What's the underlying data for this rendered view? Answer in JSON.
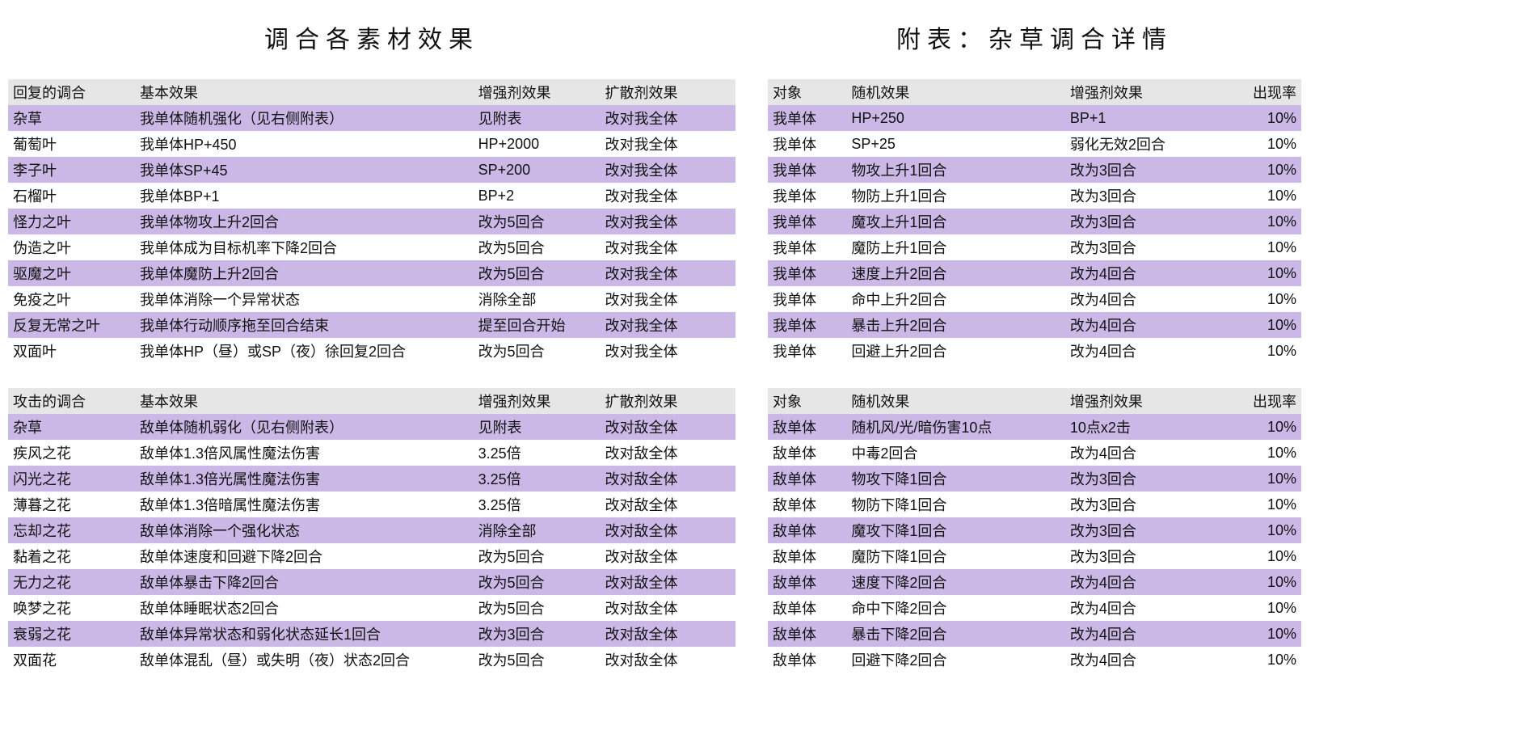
{
  "palette": {
    "header_bg": "#e6e6e6",
    "stripe_bg": "#ccb8e6",
    "page_bg": "#ffffff",
    "text_color": "#111111"
  },
  "titles": {
    "left": "调合各素材效果",
    "right": "附表：杂草调合详情"
  },
  "left_tables": [
    {
      "col_widths": [
        "150px",
        "400px",
        "150px",
        "160px"
      ],
      "headers": [
        "回复的调合",
        "基本效果",
        "增强剂效果",
        "扩散剂效果"
      ],
      "rows": [
        [
          "杂草",
          "我单体随机强化（见右侧附表）",
          "见附表",
          "改对我全体"
        ],
        [
          "葡萄叶",
          "我单体HP+450",
          "HP+2000",
          "改对我全体"
        ],
        [
          "李子叶",
          "我单体SP+45",
          "SP+200",
          "改对我全体"
        ],
        [
          "石榴叶",
          "我单体BP+1",
          "BP+2",
          "改对我全体"
        ],
        [
          "怪力之叶",
          "我单体物攻上升2回合",
          "改为5回合",
          "改对我全体"
        ],
        [
          "伪造之叶",
          "我单体成为目标机率下降2回合",
          "改为5回合",
          "改对我全体"
        ],
        [
          "驱魔之叶",
          "我单体魔防上升2回合",
          "改为5回合",
          "改对我全体"
        ],
        [
          "免疫之叶",
          "我单体消除一个异常状态",
          "消除全部",
          "改对我全体"
        ],
        [
          "反复无常之叶",
          "我单体行动顺序拖至回合结束",
          "提至回合开始",
          "改对我全体"
        ],
        [
          "双面叶",
          "我单体HP（昼）或SP（夜）徐回复2回合",
          "改为5回合",
          "改对我全体"
        ]
      ]
    },
    {
      "col_widths": [
        "150px",
        "400px",
        "150px",
        "160px"
      ],
      "headers": [
        "攻击的调合",
        "基本效果",
        "增强剂效果",
        "扩散剂效果"
      ],
      "rows": [
        [
          "杂草",
          "敌单体随机弱化（见右侧附表）",
          "见附表",
          "改对敌全体"
        ],
        [
          "疾风之花",
          "敌单体1.3倍风属性魔法伤害",
          "3.25倍",
          "改对敌全体"
        ],
        [
          "闪光之花",
          "敌单体1.3倍光属性魔法伤害",
          "3.25倍",
          "改对敌全体"
        ],
        [
          "薄暮之花",
          "敌单体1.3倍暗属性魔法伤害",
          "3.25倍",
          "改对敌全体"
        ],
        [
          "忘却之花",
          "敌单体消除一个强化状态",
          "消除全部",
          "改对敌全体"
        ],
        [
          "黏着之花",
          "敌单体速度和回避下降2回合",
          "改为5回合",
          "改对敌全体"
        ],
        [
          "无力之花",
          "敌单体暴击下降2回合",
          "改为5回合",
          "改对敌全体"
        ],
        [
          "唤梦之花",
          "敌单体睡眠状态2回合",
          "改为5回合",
          "改对敌全体"
        ],
        [
          "衰弱之花",
          "敌单体异常状态和弱化状态延长1回合",
          "改为3回合",
          "改对敌全体"
        ],
        [
          "双面花",
          "敌单体混乱（昼）或失明（夜）状态2回合",
          "改为5回合",
          "改对敌全体"
        ]
      ]
    }
  ],
  "right_tables": [
    {
      "col_widths": [
        "90px",
        "250px",
        "180px",
        "90px"
      ],
      "headers": [
        "对象",
        "随机效果",
        "增强剂效果",
        "出现率"
      ],
      "last_col_numeric": true,
      "rows": [
        [
          "我单体",
          "HP+250",
          "BP+1",
          "10%"
        ],
        [
          "我单体",
          "SP+25",
          "弱化无效2回合",
          "10%"
        ],
        [
          "我单体",
          "物攻上升1回合",
          "改为3回合",
          "10%"
        ],
        [
          "我单体",
          "物防上升1回合",
          "改为3回合",
          "10%"
        ],
        [
          "我单体",
          "魔攻上升1回合",
          "改为3回合",
          "10%"
        ],
        [
          "我单体",
          "魔防上升1回合",
          "改为3回合",
          "10%"
        ],
        [
          "我单体",
          "速度上升2回合",
          "改为4回合",
          "10%"
        ],
        [
          "我单体",
          "命中上升2回合",
          "改为4回合",
          "10%"
        ],
        [
          "我单体",
          "暴击上升2回合",
          "改为4回合",
          "10%"
        ],
        [
          "我单体",
          "回避上升2回合",
          "改为4回合",
          "10%"
        ]
      ]
    },
    {
      "col_widths": [
        "90px",
        "250px",
        "180px",
        "90px"
      ],
      "headers": [
        "对象",
        "随机效果",
        "增强剂效果",
        "出现率"
      ],
      "last_col_numeric": true,
      "rows": [
        [
          "敌单体",
          "随机风/光/暗伤害10点",
          "10点x2击",
          "10%"
        ],
        [
          "敌单体",
          "中毒2回合",
          "改为4回合",
          "10%"
        ],
        [
          "敌单体",
          "物攻下降1回合",
          "改为3回合",
          "10%"
        ],
        [
          "敌单体",
          "物防下降1回合",
          "改为3回合",
          "10%"
        ],
        [
          "敌单体",
          "魔攻下降1回合",
          "改为3回合",
          "10%"
        ],
        [
          "敌单体",
          "魔防下降1回合",
          "改为3回合",
          "10%"
        ],
        [
          "敌单体",
          "速度下降2回合",
          "改为4回合",
          "10%"
        ],
        [
          "敌单体",
          "命中下降2回合",
          "改为4回合",
          "10%"
        ],
        [
          "敌单体",
          "暴击下降2回合",
          "改为4回合",
          "10%"
        ],
        [
          "敌单体",
          "回避下降2回合",
          "改为4回合",
          "10%"
        ]
      ]
    }
  ]
}
